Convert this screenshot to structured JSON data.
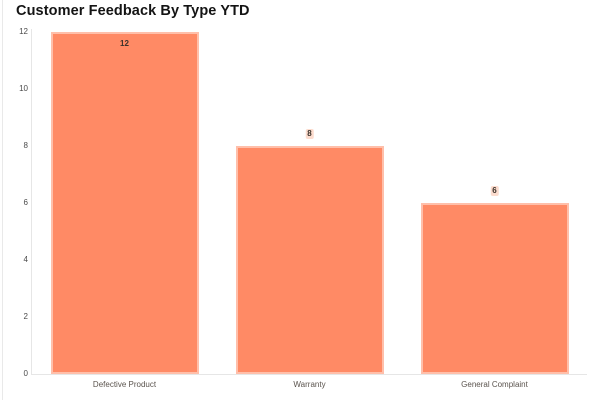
{
  "chart_data": {
    "type": "bar",
    "title": "Customer Feedback By Type YTD",
    "categories": [
      "Defective Product",
      "Warranty",
      "General Complaint"
    ],
    "values": [
      12,
      8,
      6
    ],
    "value_labels": [
      "12",
      "8",
      "6"
    ],
    "yticks": [
      0,
      2,
      4,
      6,
      8,
      10,
      12
    ],
    "ylim": [
      0,
      12
    ],
    "xlabel": "",
    "ylabel": "",
    "grid": false,
    "legend": "none",
    "bar_color": "#FF8A65",
    "bar_border_color": "#FFB49A",
    "label_halo_color": "#FCD6C6",
    "axis_line_color": "#E6E6E6",
    "title_color": "#141414",
    "tick_color": "#4A4A4A"
  }
}
